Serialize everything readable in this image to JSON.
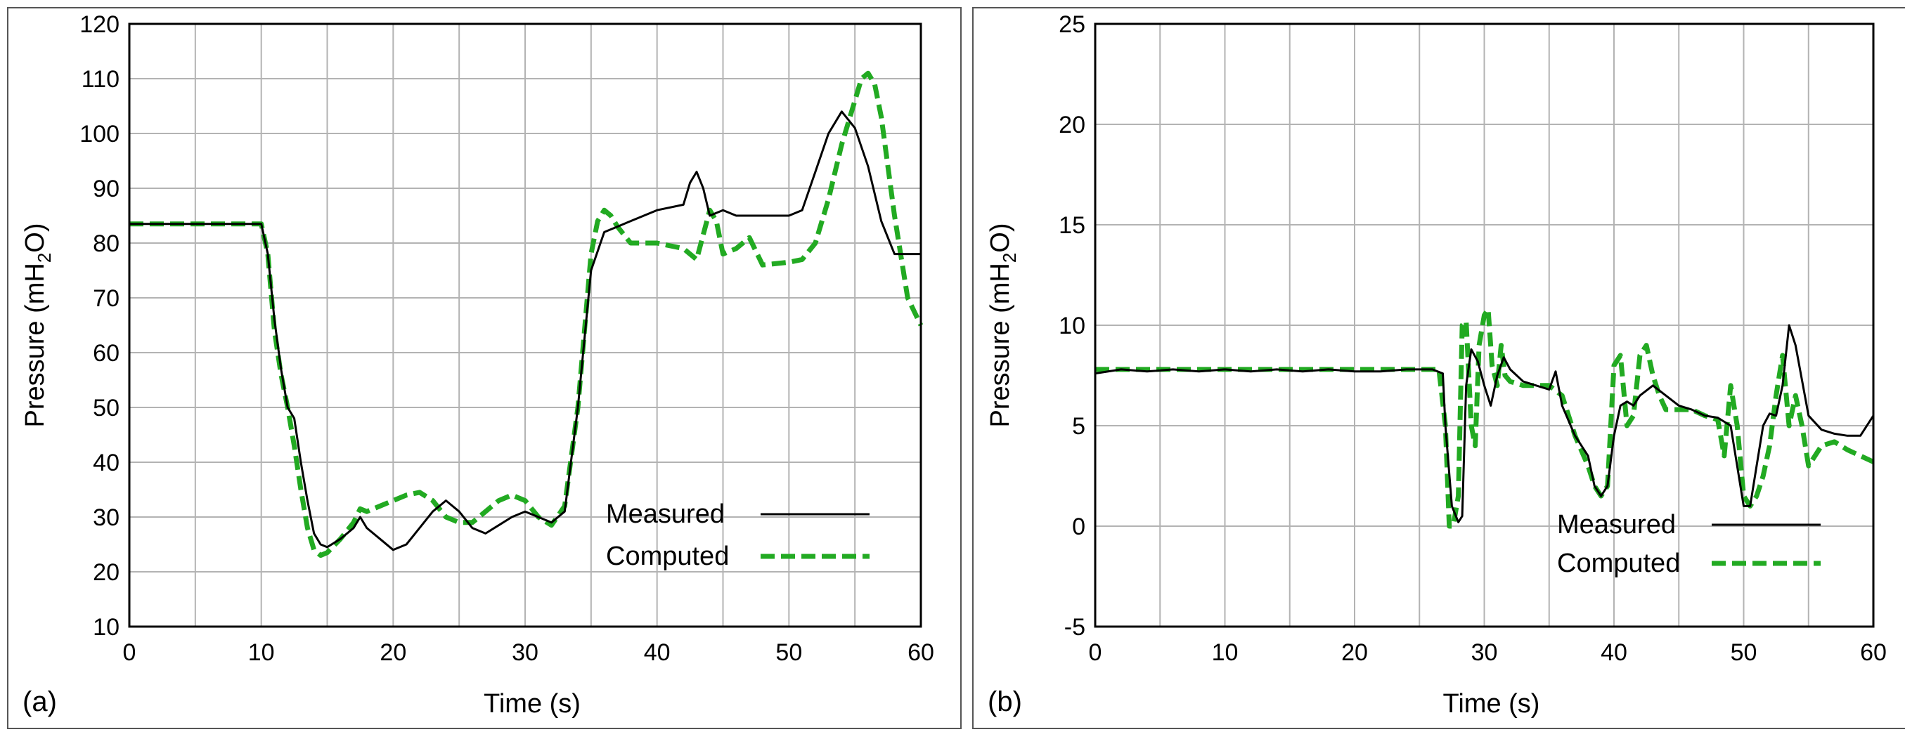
{
  "colors": {
    "measured": "#000000",
    "computed": "#22aa22",
    "grid": "#b3b3b3"
  },
  "chart_data": [
    {
      "type": "line",
      "panel_label": "(a)",
      "xlabel": "Time (s)",
      "ylabel_prefix": "Pressure (mH",
      "ylabel_sub": "2",
      "ylabel_suffix": "O)",
      "xlim": [
        0,
        60
      ],
      "ylim": [
        10,
        120
      ],
      "xticks": [
        0,
        10,
        20,
        30,
        40,
        50,
        60
      ],
      "yticks": [
        10,
        20,
        30,
        40,
        50,
        60,
        70,
        80,
        90,
        100,
        110,
        120
      ],
      "legend": [
        "Measured",
        "Computed"
      ],
      "series": [
        {
          "name": "Measured",
          "x": [
            0,
            10,
            10.5,
            11,
            11.5,
            12,
            12.5,
            13,
            13.5,
            14,
            14.5,
            15,
            16,
            17,
            17.5,
            18,
            19,
            20,
            21,
            22,
            23,
            24,
            25,
            26,
            27,
            28,
            29,
            30,
            31,
            32,
            33,
            34,
            35,
            36,
            37,
            38,
            40,
            42,
            42.5,
            43,
            43.5,
            44,
            45,
            46,
            48,
            50,
            51,
            52,
            53,
            54,
            55,
            56,
            57,
            58,
            60
          ],
          "y": [
            83.5,
            83.5,
            78,
            66,
            57,
            50,
            48,
            40,
            33,
            27,
            25,
            24.5,
            26,
            28,
            30,
            28,
            26,
            24,
            25,
            28,
            31,
            33,
            31,
            28,
            27,
            28.5,
            30,
            31,
            30,
            29,
            31,
            50,
            75,
            82,
            83,
            84,
            86,
            87,
            91,
            93,
            90,
            85,
            86,
            85,
            85,
            85,
            86,
            93,
            100,
            104,
            101,
            94,
            84,
            78,
            78
          ]
        },
        {
          "name": "Computed",
          "x": [
            0,
            10,
            10.5,
            11,
            11.5,
            12,
            12.5,
            13,
            13.5,
            14,
            14.5,
            15,
            16,
            17,
            17.5,
            18,
            19,
            20,
            21,
            22,
            23,
            24,
            25,
            26,
            27,
            28,
            29,
            30,
            31,
            32,
            33,
            34,
            35,
            35.5,
            36,
            36.5,
            37,
            38,
            40,
            42,
            43,
            44,
            44.5,
            45,
            46,
            47,
            48,
            50,
            51,
            52,
            53,
            54,
            55,
            55.5,
            56,
            56.5,
            57,
            58,
            59,
            60
          ],
          "y": [
            83.5,
            83.5,
            78,
            64,
            56,
            50,
            43,
            35,
            28,
            24,
            23,
            23.5,
            26,
            29,
            31.5,
            31,
            32,
            33,
            34,
            34.5,
            33,
            30,
            29,
            29,
            31,
            33,
            34,
            33,
            30,
            28.5,
            32,
            50,
            78,
            84,
            86,
            85,
            83,
            80,
            80,
            79,
            77,
            86,
            84,
            78,
            79,
            81,
            76,
            76.5,
            77,
            80,
            88,
            98,
            106,
            110,
            111,
            109,
            103,
            85,
            70,
            65
          ]
        }
      ]
    },
    {
      "type": "line",
      "panel_label": "(b)",
      "xlabel": "Time (s)",
      "ylabel_prefix": "Pressure (mH",
      "ylabel_sub": "2",
      "ylabel_suffix": "O)",
      "xlim": [
        0,
        60
      ],
      "ylim": [
        -5,
        25
      ],
      "xticks": [
        0,
        10,
        20,
        30,
        40,
        50,
        60
      ],
      "yticks": [
        -5,
        0,
        5,
        10,
        15,
        20,
        25
      ],
      "legend": [
        "Measured",
        "Computed"
      ],
      "series": [
        {
          "name": "Measured",
          "x": [
            0,
            2,
            4,
            6,
            8,
            10,
            12,
            14,
            16,
            18,
            20,
            22,
            24,
            26,
            26.8,
            27,
            27.5,
            28,
            28.3,
            28.6,
            29,
            29.5,
            30,
            30.5,
            31,
            31.5,
            32,
            33,
            34,
            35,
            35.5,
            36,
            37,
            38,
            38.5,
            39,
            39.5,
            40,
            40.5,
            41,
            41.5,
            42,
            43,
            44,
            45,
            46,
            47,
            48,
            49,
            50,
            50.5,
            51,
            51.5,
            52,
            52.5,
            53,
            53.5,
            54,
            55,
            56,
            57,
            58,
            59,
            60
          ],
          "y": [
            7.6,
            7.8,
            7.7,
            7.8,
            7.7,
            7.8,
            7.7,
            7.8,
            7.7,
            7.8,
            7.7,
            7.7,
            7.8,
            7.8,
            7.6,
            5,
            1,
            0.2,
            0.5,
            7,
            8.8,
            8.2,
            7,
            6,
            7.5,
            8.4,
            7.8,
            7.2,
            7,
            6.8,
            7.7,
            6,
            4.5,
            3.5,
            2,
            1.5,
            2,
            4.5,
            6,
            6.2,
            6,
            6.5,
            7,
            6.5,
            6,
            5.8,
            5.5,
            5.4,
            5,
            1,
            1,
            3,
            5,
            5.6,
            5.5,
            7,
            10,
            9,
            5.5,
            4.8,
            4.6,
            4.5,
            4.5,
            5.5
          ]
        },
        {
          "name": "Computed",
          "x": [
            0,
            5,
            10,
            15,
            20,
            25,
            26,
            26.5,
            27,
            27.3,
            27.6,
            28,
            28.3,
            28.6,
            29,
            29.3,
            29.6,
            30,
            30.3,
            30.6,
            31,
            31.3,
            31.6,
            32,
            33,
            34,
            35,
            36,
            37,
            38,
            38.5,
            39,
            39.5,
            40,
            40.5,
            41,
            41.5,
            42,
            42.5,
            43,
            43.5,
            44,
            44.5,
            45,
            46,
            47,
            48,
            48.5,
            49,
            49.5,
            50,
            50.5,
            51,
            51.5,
            52,
            52.5,
            53,
            53.5,
            54,
            54.5,
            55,
            56,
            57,
            58,
            59,
            60
          ],
          "y": [
            7.8,
            7.8,
            7.8,
            7.8,
            7.8,
            7.8,
            7.8,
            7.8,
            5,
            0,
            0,
            1.5,
            10,
            10.2,
            5,
            4,
            9,
            10.5,
            10.8,
            8,
            7,
            9,
            7.5,
            7.2,
            7,
            7,
            7,
            6.5,
            4.5,
            3,
            2,
            1.5,
            2,
            8,
            8.5,
            5,
            5.5,
            8.5,
            9,
            7.5,
            6.5,
            5.8,
            5.8,
            5.8,
            5.8,
            5.5,
            5.3,
            3.5,
            7,
            5,
            1.5,
            1,
            1.5,
            2.5,
            4,
            6.5,
            8.5,
            5,
            6.5,
            5,
            3,
            4,
            4.2,
            3.8,
            3.5,
            3.2
          ]
        }
      ]
    }
  ]
}
